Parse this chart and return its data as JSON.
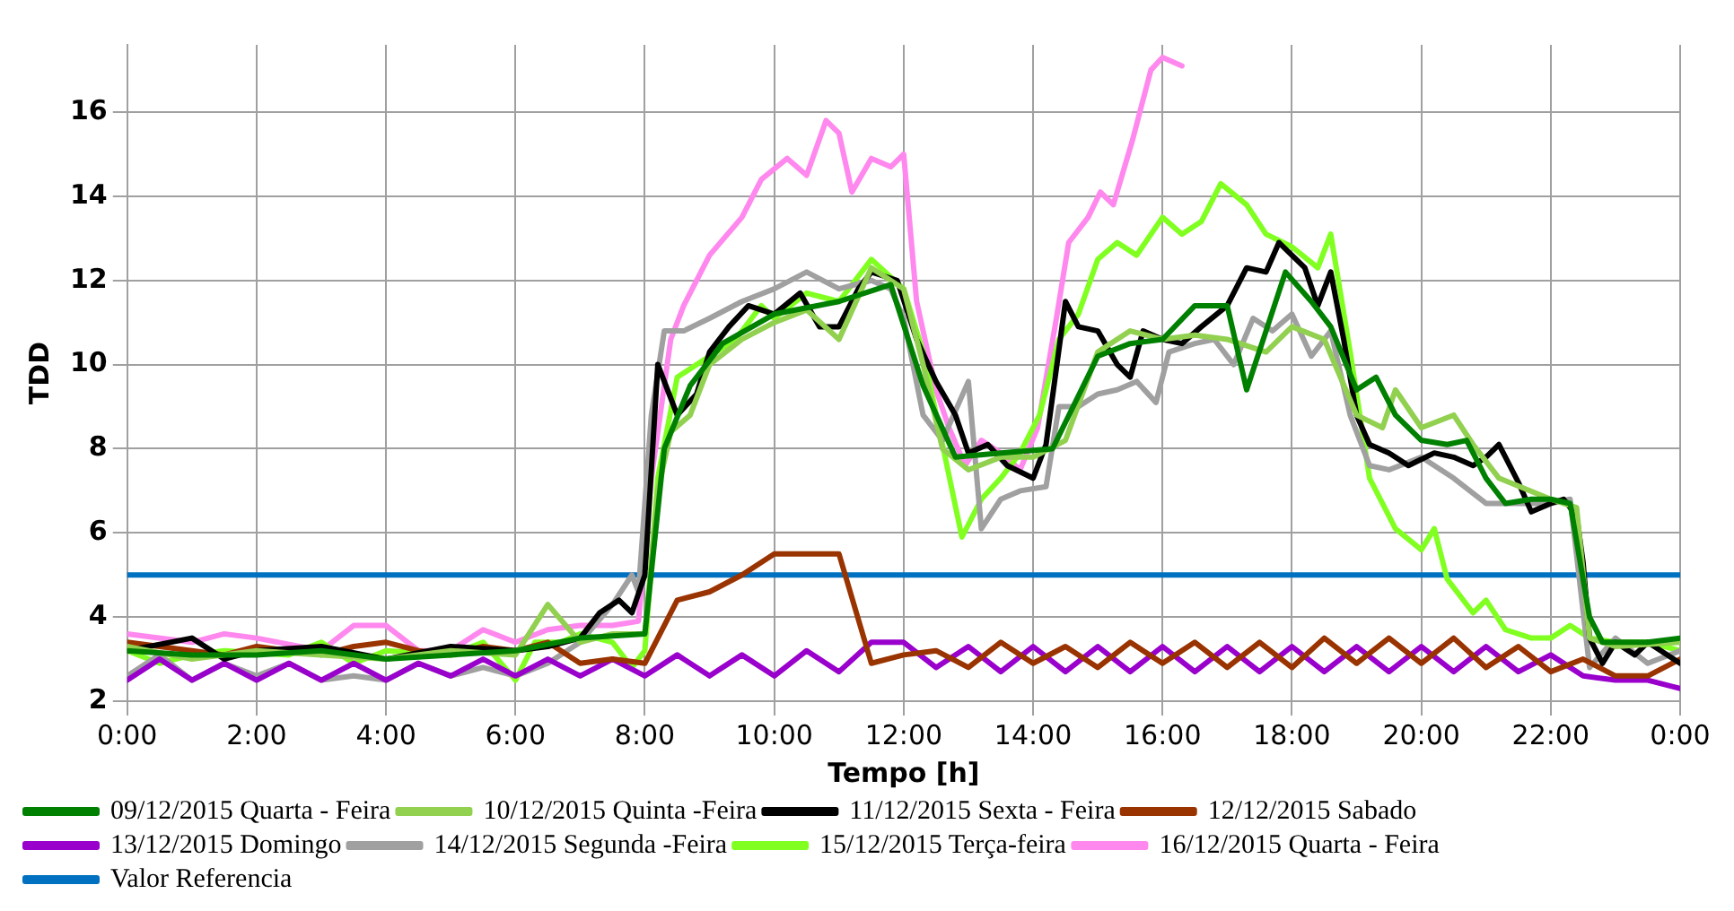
{
  "chart_data": {
    "type": "line",
    "xlabel": "Tempo [h]",
    "ylabel": "TDD",
    "xlim": [
      0,
      24
    ],
    "ylim": [
      2,
      17.6
    ],
    "xticks": [
      {
        "value": 0,
        "label": "0:00"
      },
      {
        "value": 2,
        "label": "2:00"
      },
      {
        "value": 4,
        "label": "4:00"
      },
      {
        "value": 6,
        "label": "6:00"
      },
      {
        "value": 8,
        "label": "8:00"
      },
      {
        "value": 10,
        "label": "10:00"
      },
      {
        "value": 12,
        "label": "12:00"
      },
      {
        "value": 14,
        "label": "14:00"
      },
      {
        "value": 16,
        "label": "16:00"
      },
      {
        "value": 18,
        "label": "18:00"
      },
      {
        "value": 20,
        "label": "20:00"
      },
      {
        "value": 22,
        "label": "22:00"
      },
      {
        "value": 24,
        "label": "0:00"
      }
    ],
    "yticks": [
      2,
      4,
      6,
      8,
      10,
      12,
      14,
      16
    ],
    "grid": true,
    "legend": "bottom",
    "marker": "none",
    "line_style": "solid",
    "series": [
      {
        "name": "09/12/2015 Quarta - Feira",
        "color": "#008000",
        "x": [
          0,
          1,
          2,
          3,
          4,
          5,
          6,
          7,
          8,
          8.3,
          8.7,
          9.2,
          10,
          11,
          11.8,
          12.3,
          12.8,
          13.5,
          14.3,
          15,
          15.5,
          16,
          16.5,
          17.0,
          17.3,
          17.6,
          17.9,
          18.3,
          18.6,
          19.0,
          19.3,
          19.6,
          20.0,
          20.4,
          20.7,
          21.0,
          21.3,
          21.7,
          22.0,
          22.3,
          22.6,
          22.8,
          23.5,
          24
        ],
        "values": [
          3.2,
          3.1,
          3.1,
          3.2,
          3.0,
          3.1,
          3.2,
          3.5,
          3.6,
          8.0,
          9.5,
          10.5,
          11.2,
          11.5,
          11.9,
          9.5,
          7.8,
          7.9,
          8.0,
          10.2,
          10.5,
          10.6,
          11.4,
          11.4,
          9.4,
          10.8,
          12.2,
          11.5,
          10.9,
          9.4,
          9.7,
          8.8,
          8.2,
          8.1,
          8.2,
          7.3,
          6.7,
          6.8,
          6.8,
          6.7,
          4.0,
          3.4,
          3.4,
          3.5
        ]
      },
      {
        "name": "10/12/2015 Quinta -Feira",
        "color": "#92d050",
        "x": [
          0,
          1,
          2,
          3,
          4,
          5,
          6,
          6.5,
          7,
          7.5,
          8,
          8.2,
          8.4,
          8.7,
          9,
          9.5,
          10,
          10.5,
          11,
          11.5,
          12,
          12.3,
          12.6,
          13,
          13.5,
          14,
          14.5,
          15,
          15.5,
          16,
          16.5,
          17,
          17.6,
          18,
          18.5,
          19,
          19.4,
          19.6,
          20,
          20.5,
          20.8,
          21.2,
          22,
          22.4,
          22.6,
          23,
          24
        ],
        "values": [
          3.3,
          3.0,
          3.2,
          3.1,
          3.0,
          3.2,
          3.1,
          4.3,
          3.4,
          3.6,
          3.6,
          7.0,
          8.4,
          8.8,
          10.0,
          10.6,
          11.0,
          11.3,
          10.6,
          12.3,
          11.8,
          10.0,
          8.0,
          7.5,
          7.8,
          7.8,
          8.2,
          10.3,
          10.8,
          10.6,
          10.7,
          10.6,
          10.3,
          10.9,
          10.6,
          8.8,
          8.5,
          9.4,
          8.5,
          8.8,
          8.1,
          7.3,
          6.8,
          6.6,
          3.5,
          3.3,
          3.4
        ]
      },
      {
        "name": "11/12/2015 Sexta - Feira",
        "color": "#000000",
        "x": [
          0,
          1,
          1.5,
          2,
          3,
          4,
          5,
          6,
          6.5,
          7,
          7.3,
          7.6,
          7.8,
          8.0,
          8.2,
          8.5,
          8.8,
          9,
          9.3,
          9.6,
          10,
          10.4,
          10.7,
          11,
          11.3,
          11.5,
          11.9,
          12.2,
          12.5,
          12.8,
          13.0,
          13.3,
          13.6,
          14.0,
          14.2,
          14.5,
          14.7,
          15.0,
          15.3,
          15.5,
          15.7,
          16.0,
          16.3,
          16.6,
          17.0,
          17.3,
          17.6,
          17.8,
          18.2,
          18.4,
          18.6,
          18.8,
          19.0,
          19.2,
          19.5,
          19.8,
          20.2,
          20.5,
          20.8,
          21.0,
          21.2,
          21.5,
          21.7,
          22.0,
          22.2,
          22.4,
          22.5,
          22.6,
          22.8,
          23.0,
          23.3,
          23.5,
          24
        ],
        "values": [
          3.2,
          3.5,
          3.0,
          3.2,
          3.3,
          3.0,
          3.3,
          3.2,
          3.3,
          3.5,
          4.1,
          4.4,
          4.1,
          5.0,
          10.0,
          8.8,
          9.3,
          10.3,
          10.9,
          11.4,
          11.2,
          11.7,
          10.9,
          10.9,
          11.8,
          12.2,
          12.0,
          10.6,
          9.6,
          8.8,
          7.9,
          8.1,
          7.6,
          7.3,
          8.1,
          11.5,
          10.9,
          10.8,
          10.0,
          9.7,
          10.8,
          10.6,
          10.5,
          10.9,
          11.4,
          12.3,
          12.2,
          12.9,
          12.3,
          11.4,
          12.2,
          10.6,
          8.8,
          8.1,
          7.9,
          7.6,
          7.9,
          7.8,
          7.6,
          7.8,
          8.1,
          7.2,
          6.5,
          6.7,
          6.8,
          6.4,
          5.3,
          3.5,
          2.9,
          3.4,
          3.1,
          3.4,
          2.9
        ]
      },
      {
        "name": "12/12/2015 Sabado",
        "color": "#993300",
        "x": [
          0,
          0.5,
          1,
          1.5,
          2,
          2.5,
          3,
          3.5,
          4,
          4.5,
          5,
          5.5,
          6,
          6.5,
          7,
          7.5,
          8,
          8.5,
          9,
          9.5,
          10,
          10.5,
          11,
          11.5,
          12,
          12.5,
          13,
          13.5,
          14,
          14.5,
          15,
          15.5,
          16,
          16.5,
          17,
          17.5,
          18,
          18.5,
          19,
          19.5,
          20,
          20.5,
          21,
          21.5,
          22,
          22.5,
          23,
          23.5,
          24
        ],
        "values": [
          3.4,
          3.3,
          3.2,
          3.1,
          3.3,
          3.2,
          3.1,
          3.3,
          3.4,
          3.2,
          3.1,
          3.3,
          3.2,
          3.4,
          2.9,
          3.0,
          2.9,
          4.4,
          4.6,
          5.0,
          5.5,
          5.5,
          5.5,
          2.9,
          3.1,
          3.2,
          2.8,
          3.4,
          2.9,
          3.3,
          2.8,
          3.4,
          2.9,
          3.4,
          2.8,
          3.4,
          2.8,
          3.5,
          2.9,
          3.5,
          2.9,
          3.5,
          2.8,
          3.3,
          2.7,
          3.0,
          2.6,
          2.6,
          3.0
        ]
      },
      {
        "name": "13/12/2015 Domingo",
        "color": "#9900cc",
        "x": [
          0,
          0.5,
          1,
          1.5,
          2,
          2.5,
          3,
          3.5,
          4,
          4.5,
          5,
          5.5,
          6,
          6.5,
          7,
          7.5,
          8,
          8.5,
          9,
          9.5,
          10,
          10.5,
          11,
          11.5,
          12,
          12.5,
          13,
          13.5,
          14,
          14.5,
          15,
          15.5,
          16,
          16.5,
          17,
          17.5,
          18,
          18.5,
          19,
          19.5,
          20,
          20.5,
          21,
          21.5,
          22,
          22.5,
          23,
          23.5,
          24
        ],
        "values": [
          2.5,
          3.0,
          2.5,
          2.9,
          2.5,
          2.9,
          2.5,
          2.9,
          2.5,
          2.9,
          2.6,
          3.0,
          2.6,
          3.0,
          2.6,
          3.0,
          2.6,
          3.1,
          2.6,
          3.1,
          2.6,
          3.2,
          2.7,
          3.4,
          3.4,
          2.8,
          3.3,
          2.7,
          3.3,
          2.7,
          3.3,
          2.7,
          3.3,
          2.7,
          3.3,
          2.7,
          3.3,
          2.7,
          3.3,
          2.7,
          3.3,
          2.7,
          3.3,
          2.7,
          3.1,
          2.6,
          2.5,
          2.5,
          2.3
        ]
      },
      {
        "name": "14/12/2015 Segunda -Feira",
        "color": "#a0a0a0",
        "x": [
          0,
          0.5,
          1,
          1.5,
          2,
          2.5,
          3,
          3.5,
          4,
          4.5,
          5,
          5.5,
          6,
          6.5,
          7,
          7.5,
          7.8,
          7.9,
          8.1,
          8.3,
          8.6,
          9,
          9.5,
          10,
          10.5,
          11,
          11.5,
          11.8,
          12.0,
          12.3,
          12.6,
          13.0,
          13.2,
          13.5,
          13.8,
          14.2,
          14.4,
          14.7,
          15.0,
          15.3,
          15.6,
          15.9,
          16.1,
          16.5,
          16.8,
          17.1,
          17.4,
          17.7,
          18.0,
          18.3,
          18.6,
          18.9,
          19.2,
          19.5,
          20.0,
          20.5,
          21.0,
          21.5,
          22.0,
          22.3,
          22.6,
          23.0,
          23.5,
          24
        ],
        "values": [
          2.6,
          3.1,
          2.5,
          2.9,
          2.6,
          2.9,
          2.5,
          2.6,
          2.5,
          2.9,
          2.6,
          2.8,
          2.6,
          2.9,
          3.4,
          4.3,
          5.0,
          4.6,
          8.8,
          10.8,
          10.8,
          11.1,
          11.5,
          11.8,
          12.2,
          11.8,
          12.0,
          11.8,
          11.1,
          8.8,
          8.2,
          9.6,
          6.1,
          6.8,
          7.0,
          7.1,
          9.0,
          9.0,
          9.3,
          9.4,
          9.6,
          9.1,
          10.3,
          10.5,
          10.6,
          10.0,
          11.1,
          10.8,
          11.2,
          10.2,
          10.8,
          8.8,
          7.6,
          7.5,
          7.8,
          7.3,
          6.7,
          6.7,
          6.7,
          6.8,
          2.8,
          3.5,
          2.9,
          3.2
        ]
      },
      {
        "name": "15/12/2015 Terça-feira",
        "color": "#80ff20",
        "x": [
          0,
          0.5,
          1,
          1.5,
          2.5,
          3,
          3.5,
          4,
          5,
          5.5,
          6,
          6.3,
          6.7,
          7,
          7.5,
          7.8,
          8,
          8.2,
          8.5,
          9,
          9.4,
          9.8,
          10,
          10.5,
          11,
          11.5,
          12.0,
          12.3,
          12.6,
          12.9,
          13.2,
          13.5,
          13.8,
          14.1,
          14.4,
          14.7,
          15.0,
          15.3,
          15.6,
          16.0,
          16.3,
          16.6,
          16.9,
          17.3,
          17.6,
          18.0,
          18.4,
          18.6,
          18.9,
          19.2,
          19.6,
          20.0,
          20.2,
          20.4,
          20.8,
          21.0,
          21.3,
          21.7,
          22.0,
          22.3,
          22.6,
          23.0,
          23.5,
          24
        ],
        "values": [
          3.2,
          2.9,
          3.1,
          3.2,
          3.1,
          3.4,
          2.9,
          3.2,
          3.1,
          3.4,
          2.5,
          3.4,
          3.4,
          3.6,
          3.4,
          2.8,
          3.2,
          7.3,
          9.7,
          10.2,
          10.6,
          11.4,
          11.1,
          11.7,
          11.5,
          12.5,
          11.8,
          10.3,
          8.1,
          5.9,
          6.8,
          7.3,
          7.9,
          8.8,
          10.6,
          11.2,
          12.5,
          12.9,
          12.6,
          13.5,
          13.1,
          13.4,
          14.3,
          13.8,
          13.1,
          12.8,
          12.3,
          13.1,
          10.3,
          7.3,
          6.1,
          5.6,
          6.1,
          4.9,
          4.1,
          4.4,
          3.7,
          3.5,
          3.5,
          3.8,
          3.5,
          3.4,
          3.4,
          3.2
        ]
      },
      {
        "name": "16/12/2015 Quarta - Feira",
        "color": "#ff88ee",
        "x": [
          0,
          1,
          1.5,
          2,
          3,
          3.5,
          4,
          4.5,
          5,
          5.5,
          6,
          6.5,
          7,
          7.5,
          7.9,
          8.1,
          8.4,
          8.6,
          9,
          9.5,
          9.8,
          10.2,
          10.5,
          10.8,
          11,
          11.2,
          11.5,
          11.8,
          12.0,
          12.2,
          12.5,
          12.7,
          12.95,
          13.2,
          13.5,
          13.8,
          14.07,
          14.36,
          14.55,
          14.85,
          15.04,
          15.24,
          15.53,
          15.82,
          16.0,
          16.3
        ],
        "values": [
          3.6,
          3.4,
          3.6,
          3.5,
          3.2,
          3.8,
          3.8,
          3.2,
          3.2,
          3.7,
          3.4,
          3.7,
          3.8,
          3.8,
          3.9,
          7.3,
          10.6,
          11.4,
          12.6,
          13.5,
          14.4,
          14.9,
          14.5,
          15.8,
          15.5,
          14.1,
          14.9,
          14.7,
          15.0,
          11.5,
          9.4,
          8.5,
          7.6,
          8.2,
          7.9,
          7.5,
          8.5,
          11.1,
          12.9,
          13.5,
          14.1,
          13.8,
          15.3,
          17.0,
          17.3,
          17.1
        ]
      },
      {
        "name": "Valor Referencia",
        "color": "#0070c0",
        "x": [
          0,
          24
        ],
        "values": [
          5,
          5
        ]
      }
    ]
  }
}
